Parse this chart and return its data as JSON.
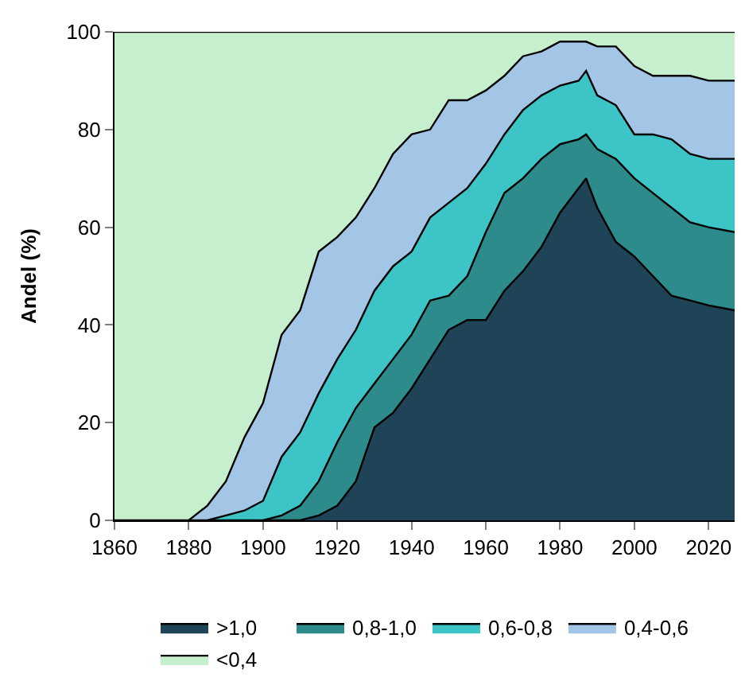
{
  "chart_data": {
    "type": "area",
    "stacked": true,
    "ylabel": "Andel (%)",
    "x": [
      1860,
      1880,
      1885,
      1890,
      1895,
      1900,
      1905,
      1910,
      1915,
      1920,
      1925,
      1930,
      1935,
      1940,
      1945,
      1950,
      1955,
      1960,
      1965,
      1970,
      1975,
      1980,
      1985,
      1987,
      1990,
      1995,
      2000,
      2005,
      2010,
      2015,
      2020,
      2027
    ],
    "series": [
      {
        "name": ">1,0",
        "color": "#1f4457",
        "values": [
          0,
          0,
          0,
          0,
          0,
          0,
          0,
          0,
          1,
          3,
          8,
          19,
          22,
          27,
          33,
          39,
          41,
          41,
          47,
          51,
          56,
          63,
          68,
          70,
          64,
          57,
          54,
          50,
          46,
          45,
          44,
          43
        ]
      },
      {
        "name": "0,8-1,0",
        "color": "#2e8b8b",
        "values": [
          0,
          0,
          0,
          0,
          0,
          0,
          1,
          3,
          7,
          13,
          15,
          9,
          11,
          11,
          12,
          7,
          9,
          18,
          20,
          19,
          18,
          14,
          10,
          9,
          12,
          17,
          16,
          17,
          18,
          16,
          16,
          16
        ]
      },
      {
        "name": "0,6-0,8",
        "color": "#3cc4c6",
        "values": [
          0,
          0,
          0,
          1,
          2,
          4,
          12,
          15,
          18,
          17,
          16,
          19,
          19,
          17,
          17,
          19,
          18,
          14,
          12,
          14,
          13,
          12,
          12,
          13,
          11,
          11,
          9,
          12,
          14,
          14,
          14,
          15
        ]
      },
      {
        "name": "0,4-0,6",
        "color": "#a3c6e6",
        "values": [
          0,
          0,
          3,
          7,
          15,
          20,
          25,
          25,
          29,
          25,
          23,
          21,
          23,
          24,
          18,
          21,
          18,
          15,
          12,
          11,
          9,
          9,
          8,
          6,
          10,
          12,
          14,
          12,
          13,
          16,
          16,
          16
        ]
      },
      {
        "name": "<0,4",
        "color": "#c6efce",
        "values": [
          100,
          100,
          97,
          92,
          83,
          76,
          62,
          57,
          45,
          42,
          38,
          32,
          25,
          21,
          20,
          14,
          14,
          12,
          9,
          5,
          4,
          2,
          2,
          2,
          3,
          3,
          7,
          9,
          9,
          9,
          10,
          10
        ]
      }
    ],
    "xlim": [
      1860,
      2027
    ],
    "xticks": [
      1860,
      1880,
      1900,
      1920,
      1940,
      1960,
      1980,
      2000,
      2020
    ],
    "ylim": [
      0,
      100
    ],
    "yticks": [
      0,
      20,
      40,
      60,
      80,
      100
    ],
    "legend": "bottom"
  }
}
